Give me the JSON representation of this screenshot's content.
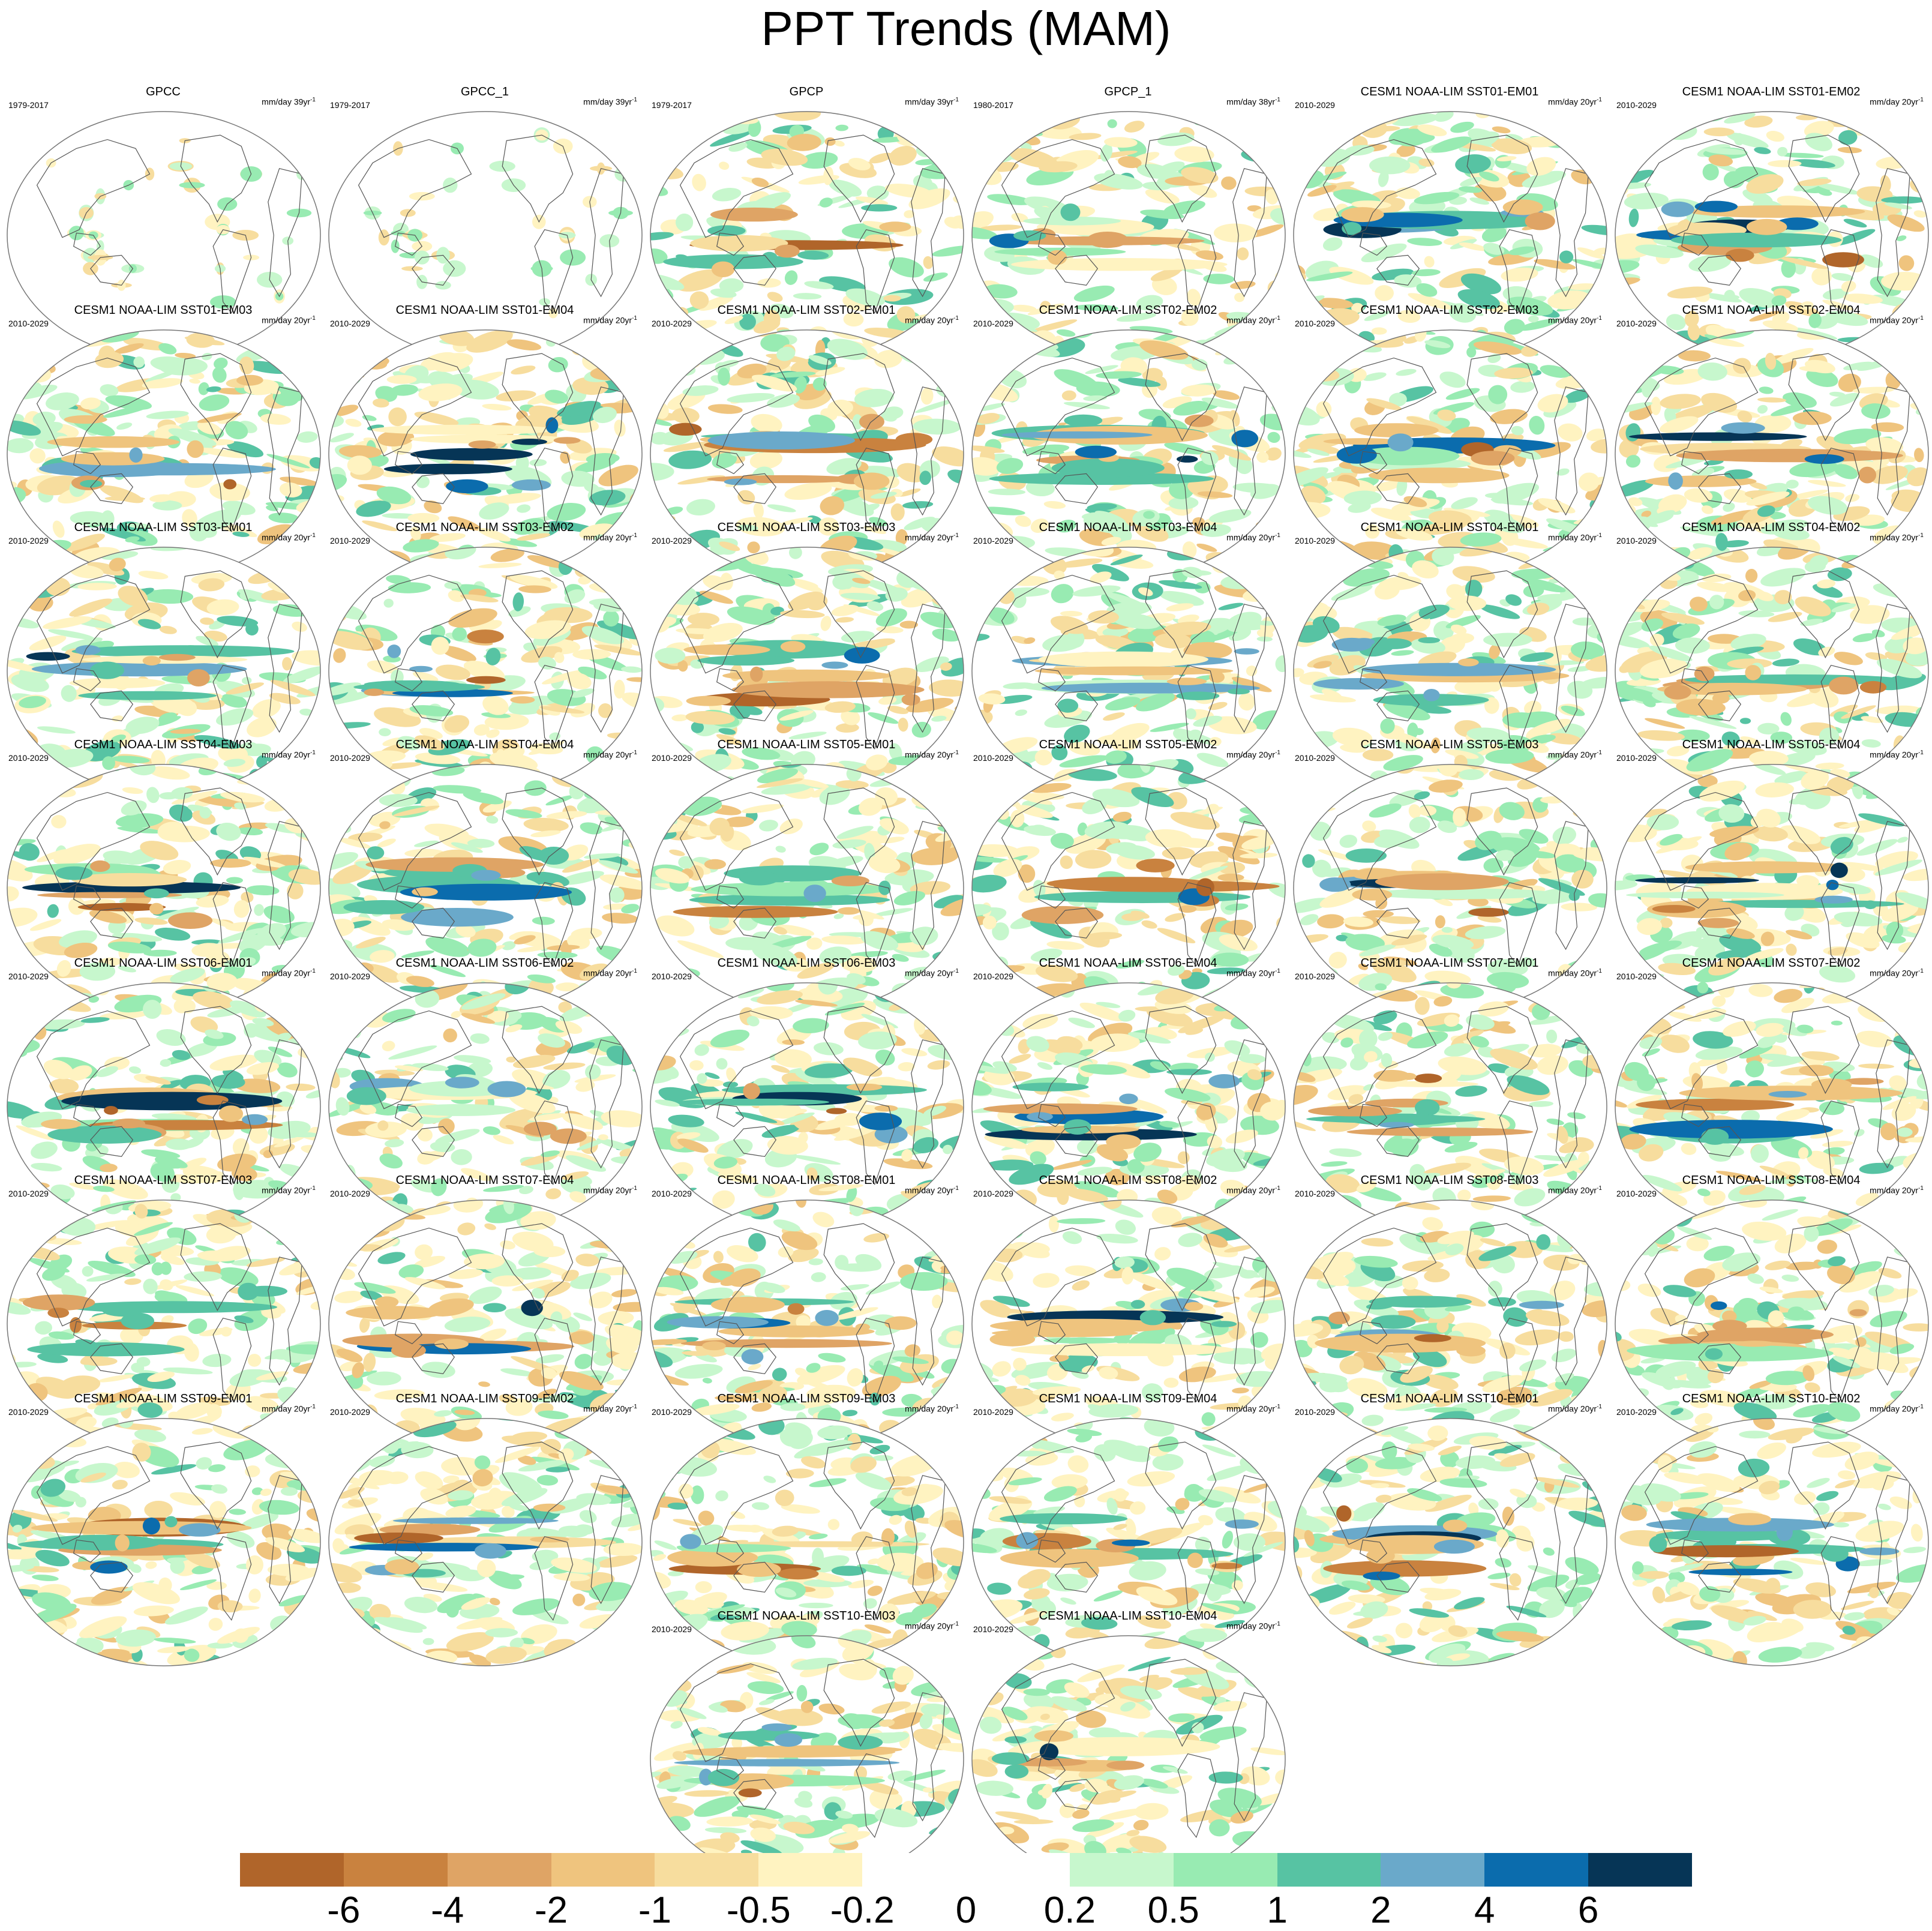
{
  "title": "PPT Trends (MAM)",
  "units_base": "mm/day",
  "units_exp": "-1",
  "colorbar": {
    "colors": [
      "#b0652a",
      "#c9823f",
      "#dfa465",
      "#efc47e",
      "#f7dd9e",
      "#fff3c1",
      "#ffffff",
      "#ffffff",
      "#c7f7cd",
      "#98ebb2",
      "#57c3a3",
      "#6aa9ca",
      "#0b6cad",
      "#063556"
    ],
    "ticks": [
      "-6",
      "-4",
      "-2",
      "-1",
      "-0.5",
      "-0.2",
      "0",
      "0.2",
      "0.5",
      "1",
      "2",
      "4",
      "6"
    ]
  },
  "panels": [
    {
      "title": "GPCC",
      "period": "1979-2017",
      "units_suffix": "39yr",
      "style": "obs-land"
    },
    {
      "title": "GPCC_1",
      "period": "1979-2017",
      "units_suffix": "39yr",
      "style": "obs-land"
    },
    {
      "title": "GPCP",
      "period": "1979-2017",
      "units_suffix": "39yr",
      "style": "obs"
    },
    {
      "title": "GPCP_1",
      "period": "1980-2017",
      "units_suffix": "38yr",
      "style": "obs"
    },
    {
      "title": "CESM1 NOAA-LIM SST01-EM01",
      "period": "2010-2029",
      "units_suffix": "20yr",
      "style": "model"
    },
    {
      "title": "CESM1 NOAA-LIM SST01-EM02",
      "period": "2010-2029",
      "units_suffix": "20yr",
      "style": "model"
    },
    {
      "title": "CESM1 NOAA-LIM SST01-EM03",
      "period": "2010-2029",
      "units_suffix": "20yr",
      "style": "model"
    },
    {
      "title": "CESM1 NOAA-LIM SST01-EM04",
      "period": "2010-2029",
      "units_suffix": "20yr",
      "style": "model"
    },
    {
      "title": "CESM1 NOAA-LIM SST02-EM01",
      "period": "2010-2029",
      "units_suffix": "20yr",
      "style": "model"
    },
    {
      "title": "CESM1 NOAA-LIM SST02-EM02",
      "period": "2010-2029",
      "units_suffix": "20yr",
      "style": "model"
    },
    {
      "title": "CESM1 NOAA-LIM SST02-EM03",
      "period": "2010-2029",
      "units_suffix": "20yr",
      "style": "model"
    },
    {
      "title": "CESM1 NOAA-LIM SST02-EM04",
      "period": "2010-2029",
      "units_suffix": "20yr",
      "style": "model"
    },
    {
      "title": "CESM1 NOAA-LIM SST03-EM01",
      "period": "2010-2029",
      "units_suffix": "20yr",
      "style": "model"
    },
    {
      "title": "CESM1 NOAA-LIM SST03-EM02",
      "period": "2010-2029",
      "units_suffix": "20yr",
      "style": "model"
    },
    {
      "title": "CESM1 NOAA-LIM SST03-EM03",
      "period": "2010-2029",
      "units_suffix": "20yr",
      "style": "model"
    },
    {
      "title": "CESM1 NOAA-LIM SST03-EM04",
      "period": "2010-2029",
      "units_suffix": "20yr",
      "style": "model"
    },
    {
      "title": "CESM1 NOAA-LIM SST04-EM01",
      "period": "2010-2029",
      "units_suffix": "20yr",
      "style": "model"
    },
    {
      "title": "CESM1 NOAA-LIM SST04-EM02",
      "period": "2010-2029",
      "units_suffix": "20yr",
      "style": "model"
    },
    {
      "title": "CESM1 NOAA-LIM SST04-EM03",
      "period": "2010-2029",
      "units_suffix": "20yr",
      "style": "model"
    },
    {
      "title": "CESM1 NOAA-LIM SST04-EM04",
      "period": "2010-2029",
      "units_suffix": "20yr",
      "style": "model"
    },
    {
      "title": "CESM1 NOAA-LIM SST05-EM01",
      "period": "2010-2029",
      "units_suffix": "20yr",
      "style": "model"
    },
    {
      "title": "CESM1 NOAA-LIM SST05-EM02",
      "period": "2010-2029",
      "units_suffix": "20yr",
      "style": "model"
    },
    {
      "title": "CESM1 NOAA-LIM SST05-EM03",
      "period": "2010-2029",
      "units_suffix": "20yr",
      "style": "model"
    },
    {
      "title": "CESM1 NOAA-LIM SST05-EM04",
      "period": "2010-2029",
      "units_suffix": "20yr",
      "style": "model"
    },
    {
      "title": "CESM1 NOAA-LIM SST06-EM01",
      "period": "2010-2029",
      "units_suffix": "20yr",
      "style": "model"
    },
    {
      "title": "CESM1 NOAA-LIM SST06-EM02",
      "period": "2010-2029",
      "units_suffix": "20yr",
      "style": "model"
    },
    {
      "title": "CESM1 NOAA-LIM SST06-EM03",
      "period": "2010-2029",
      "units_suffix": "20yr",
      "style": "model"
    },
    {
      "title": "CESM1 NOAA-LIM SST06-EM04",
      "period": "2010-2029",
      "units_suffix": "20yr",
      "style": "model"
    },
    {
      "title": "CESM1 NOAA-LIM SST07-EM01",
      "period": "2010-2029",
      "units_suffix": "20yr",
      "style": "model"
    },
    {
      "title": "CESM1 NOAA-LIM SST07-EM02",
      "period": "2010-2029",
      "units_suffix": "20yr",
      "style": "model"
    },
    {
      "title": "CESM1 NOAA-LIM SST07-EM03",
      "period": "2010-2029",
      "units_suffix": "20yr",
      "style": "model"
    },
    {
      "title": "CESM1 NOAA-LIM SST07-EM04",
      "period": "2010-2029",
      "units_suffix": "20yr",
      "style": "model"
    },
    {
      "title": "CESM1 NOAA-LIM SST08-EM01",
      "period": "2010-2029",
      "units_suffix": "20yr",
      "style": "model"
    },
    {
      "title": "CESM1 NOAA-LIM SST08-EM02",
      "period": "2010-2029",
      "units_suffix": "20yr",
      "style": "model"
    },
    {
      "title": "CESM1 NOAA-LIM SST08-EM03",
      "period": "2010-2029",
      "units_suffix": "20yr",
      "style": "model"
    },
    {
      "title": "CESM1 NOAA-LIM SST08-EM04",
      "period": "2010-2029",
      "units_suffix": "20yr",
      "style": "model"
    },
    {
      "title": "CESM1 NOAA-LIM SST09-EM01",
      "period": "2010-2029",
      "units_suffix": "20yr",
      "style": "model"
    },
    {
      "title": "CESM1 NOAA-LIM SST09-EM02",
      "period": "2010-2029",
      "units_suffix": "20yr",
      "style": "model"
    },
    {
      "title": "CESM1 NOAA-LIM SST09-EM03",
      "period": "2010-2029",
      "units_suffix": "20yr",
      "style": "model"
    },
    {
      "title": "CESM1 NOAA-LIM SST09-EM04",
      "period": "2010-2029",
      "units_suffix": "20yr",
      "style": "model"
    },
    {
      "title": "CESM1 NOAA-LIM SST10-EM01",
      "period": "2010-2029",
      "units_suffix": "20yr",
      "style": "model"
    },
    {
      "title": "CESM1 NOAA-LIM SST10-EM02",
      "period": "2010-2029",
      "units_suffix": "20yr",
      "style": "model"
    },
    {
      "title": "CESM1 NOAA-LIM SST10-EM03",
      "period": "2010-2029",
      "units_suffix": "20yr",
      "style": "model"
    },
    {
      "title": "CESM1 NOAA-LIM SST10-EM04",
      "period": "2010-2029",
      "units_suffix": "20yr",
      "style": "model"
    }
  ]
}
